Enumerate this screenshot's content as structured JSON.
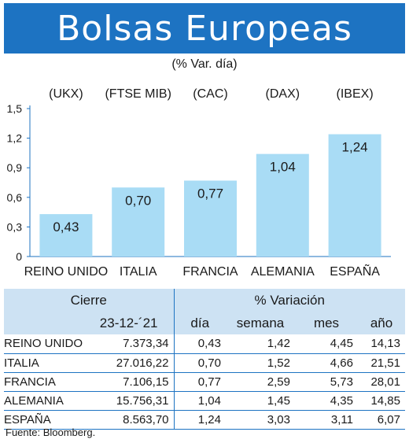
{
  "title": "Bolsas Europeas",
  "subtitle": "(% Var. día)",
  "chart_data": {
    "type": "bar",
    "categories": [
      "REINO UNIDO",
      "ITALIA",
      "FRANCIA",
      "ALEMANIA",
      "ESPAÑA"
    ],
    "index_labels": [
      "(UKX)",
      "(FTSE MIB)",
      "(CAC)",
      "(DAX)",
      "(IBEX)"
    ],
    "values": [
      0.43,
      0.7,
      0.77,
      1.04,
      1.24
    ],
    "value_labels": [
      "0,43",
      "0,70",
      "0,77",
      "1,04",
      "1,24"
    ],
    "yticks": [
      0,
      0.3,
      0.6,
      0.9,
      1.2,
      1.5
    ],
    "ytick_labels": [
      "0",
      "0,3",
      "0,6",
      "0,9",
      "1,2",
      "1,5"
    ],
    "ylim": [
      0,
      1.5
    ],
    "bar_color": "#a9dcf5",
    "xlabel": "",
    "ylabel": ""
  },
  "table": {
    "header_cierre": "Cierre",
    "header_variacion": "% Variación",
    "date": "23-12-´21",
    "col_dia": "día",
    "col_semana": "semana",
    "col_mes": "mes",
    "col_ano": "año",
    "rows": [
      {
        "name": "REINO UNIDO",
        "cierre": "7.373,34",
        "dia": "0,43",
        "semana": "1,42",
        "mes": "4,45",
        "ano": "14,13"
      },
      {
        "name": "ITALIA",
        "cierre": "27.016,22",
        "dia": "0,70",
        "semana": "1,52",
        "mes": "4,66",
        "ano": "21,51"
      },
      {
        "name": "FRANCIA",
        "cierre": "7.106,15",
        "dia": "0,77",
        "semana": "2,59",
        "mes": "5,73",
        "ano": "28,01"
      },
      {
        "name": "ALEMANIA",
        "cierre": "15.756,31",
        "dia": "1,04",
        "semana": "1,45",
        "mes": "4,35",
        "ano": "14,85"
      },
      {
        "name": "ESPAÑA",
        "cierre": "8.563,70",
        "dia": "1,24",
        "semana": "3,03",
        "mes": "3,11",
        "ano": "6,07"
      }
    ]
  },
  "source": "Fuente: Bloomberg."
}
